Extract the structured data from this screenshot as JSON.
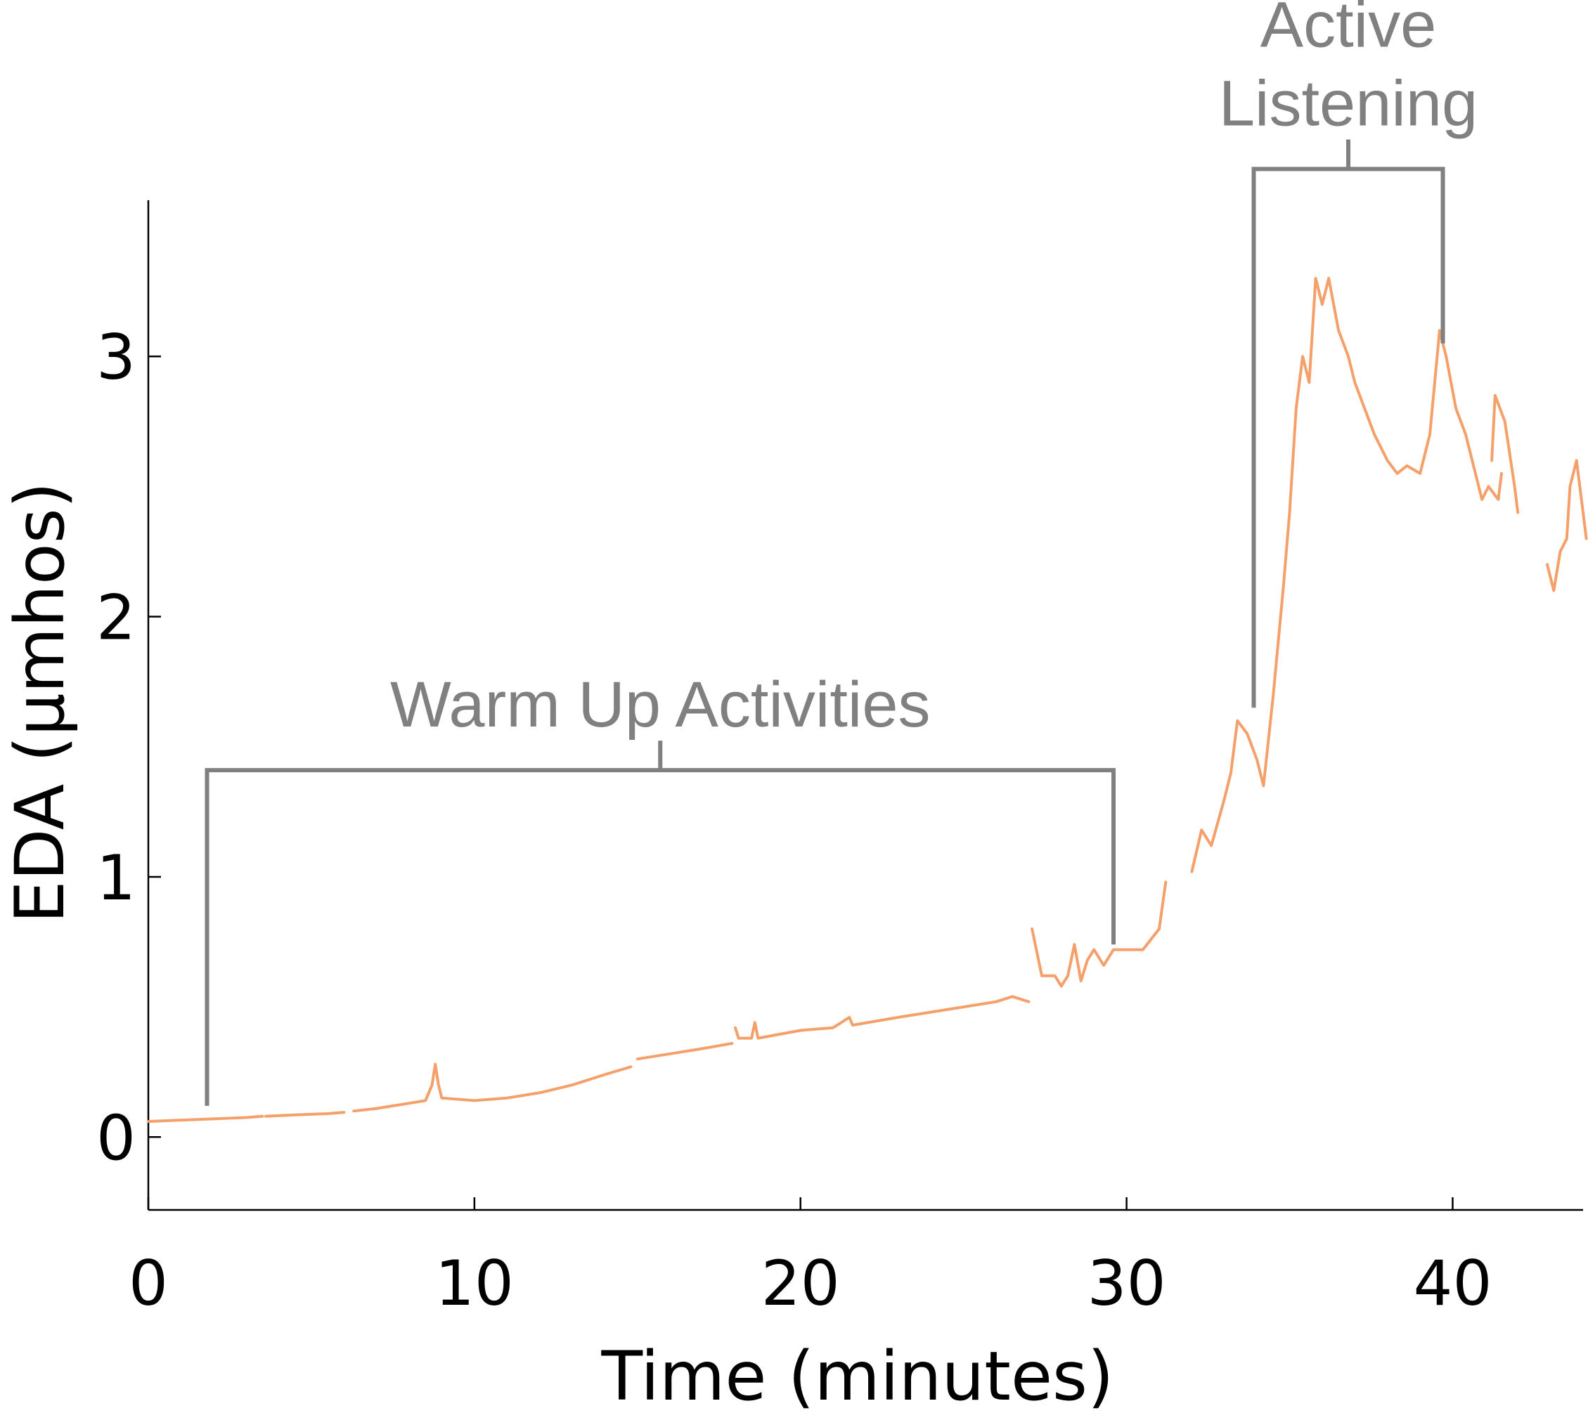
{
  "chart_data": {
    "type": "line",
    "title": "",
    "xlabel": "Time (minutes)",
    "ylabel": "EDA (μmhos)",
    "xlim": [
      0,
      44
    ],
    "ylim": [
      -0.28,
      3.6
    ],
    "x_ticks": [
      0,
      10,
      20,
      30,
      40
    ],
    "y_ticks": [
      0,
      1,
      2,
      3
    ],
    "grid": false,
    "legend": "none",
    "line_color": "#F5A06A",
    "annotation_color": "#808080",
    "series": [
      {
        "segments": [
          [
            [
              0,
              0.06
            ],
            [
              1,
              0.065
            ],
            [
              2,
              0.07
            ],
            [
              3,
              0.075
            ],
            [
              3.5,
              0.08
            ]
          ],
          [
            [
              3.6,
              0.08
            ],
            [
              4.5,
              0.085
            ],
            [
              5.5,
              0.09
            ],
            [
              6.0,
              0.095
            ]
          ],
          [
            [
              6.3,
              0.1
            ],
            [
              7.0,
              0.11
            ],
            [
              7.5,
              0.12
            ],
            [
              8.0,
              0.13
            ],
            [
              8.5,
              0.14
            ],
            [
              8.7,
              0.2
            ],
            [
              8.8,
              0.28
            ],
            [
              8.9,
              0.2
            ],
            [
              9.0,
              0.15
            ],
            [
              10,
              0.14
            ],
            [
              11,
              0.15
            ],
            [
              12,
              0.17
            ],
            [
              13,
              0.2
            ],
            [
              14,
              0.24
            ],
            [
              14.8,
              0.27
            ]
          ],
          [
            [
              15,
              0.3
            ],
            [
              16,
              0.32
            ],
            [
              17,
              0.34
            ],
            [
              17.9,
              0.36
            ]
          ],
          [
            [
              18,
              0.42
            ],
            [
              18.1,
              0.38
            ],
            [
              18.5,
              0.38
            ],
            [
              18.6,
              0.44
            ],
            [
              18.7,
              0.38
            ],
            [
              20,
              0.41
            ],
            [
              21,
              0.42
            ],
            [
              21.5,
              0.46
            ],
            [
              21.6,
              0.43
            ],
            [
              23,
              0.46
            ],
            [
              24,
              0.48
            ],
            [
              25,
              0.5
            ],
            [
              26,
              0.52
            ],
            [
              26.5,
              0.54
            ],
            [
              27.0,
              0.52
            ]
          ],
          [
            [
              27.1,
              0.8
            ],
            [
              27.4,
              0.62
            ],
            [
              27.8,
              0.62
            ],
            [
              28.0,
              0.58
            ],
            [
              28.2,
              0.62
            ],
            [
              28.4,
              0.74
            ],
            [
              28.6,
              0.6
            ],
            [
              28.8,
              0.68
            ],
            [
              29,
              0.72
            ],
            [
              29.3,
              0.66
            ],
            [
              29.6,
              0.72
            ],
            [
              30,
              0.72
            ],
            [
              30.5,
              0.72
            ],
            [
              31.0,
              0.8
            ],
            [
              31.2,
              0.98
            ]
          ],
          [
            [
              32,
              1.02
            ],
            [
              32.3,
              1.18
            ],
            [
              32.6,
              1.12
            ],
            [
              33.0,
              1.3
            ],
            [
              33.2,
              1.4
            ],
            [
              33.4,
              1.6
            ],
            [
              33.7,
              1.55
            ],
            [
              34.0,
              1.45
            ],
            [
              34.2,
              1.35
            ],
            [
              34.5,
              1.7
            ],
            [
              34.8,
              2.1
            ],
            [
              35.0,
              2.4
            ],
            [
              35.2,
              2.8
            ],
            [
              35.4,
              3.0
            ],
            [
              35.6,
              2.9
            ],
            [
              35.8,
              3.3
            ],
            [
              36.0,
              3.2
            ],
            [
              36.2,
              3.3
            ],
            [
              36.5,
              3.1
            ],
            [
              36.8,
              3.0
            ],
            [
              37.0,
              2.9
            ],
            [
              37.3,
              2.8
            ],
            [
              37.6,
              2.7
            ],
            [
              38.0,
              2.6
            ],
            [
              38.3,
              2.55
            ],
            [
              38.6,
              2.58
            ],
            [
              39.0,
              2.55
            ],
            [
              39.3,
              2.7
            ],
            [
              39.6,
              3.1
            ],
            [
              39.8,
              3.0
            ],
            [
              40.1,
              2.8
            ],
            [
              40.4,
              2.7
            ],
            [
              40.7,
              2.55
            ],
            [
              40.9,
              2.45
            ],
            [
              41.1,
              2.5
            ],
            [
              41.4,
              2.45
            ],
            [
              41.5,
              2.55
            ]
          ],
          [
            [
              41.2,
              2.6
            ],
            [
              41.3,
              2.85
            ],
            [
              41.6,
              2.75
            ],
            [
              41.9,
              2.5
            ],
            [
              42.0,
              2.4
            ]
          ],
          [
            [
              42.9,
              2.2
            ],
            [
              43.1,
              2.1
            ],
            [
              43.3,
              2.25
            ],
            [
              43.5,
              2.3
            ],
            [
              43.6,
              2.5
            ],
            [
              43.8,
              2.6
            ],
            [
              44.0,
              2.4
            ],
            [
              44.1,
              2.3
            ]
          ]
        ]
      }
    ],
    "annotations": [
      {
        "label": "Warm Up Activities",
        "x_start": 1.8,
        "x_end": 29.6,
        "bracket_y": 1.41,
        "left_end_y": 0.12,
        "right_end_y": 0.74
      },
      {
        "label_lines": [
          "Active",
          "Listening"
        ],
        "x_start": 33.9,
        "x_end": 39.7,
        "bracket_y": 3.72,
        "left_end_y": 1.65,
        "right_end_y": 3.05
      }
    ]
  }
}
